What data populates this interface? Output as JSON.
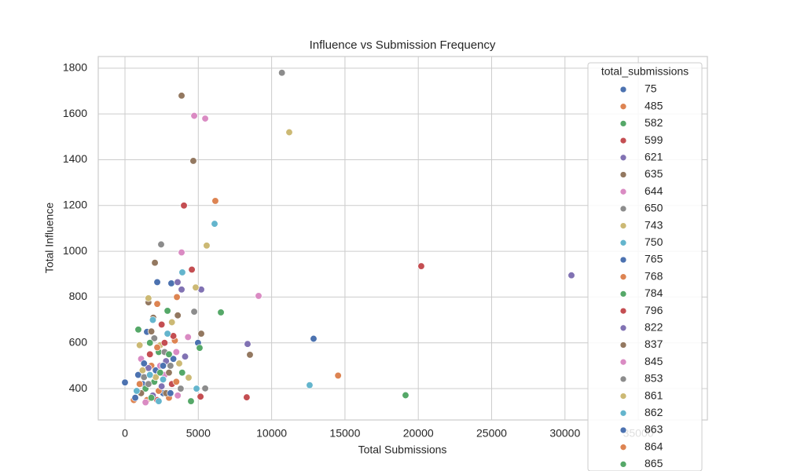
{
  "chart_data": {
    "type": "scatter",
    "title": "Influence vs Submission Frequency",
    "x_label": "Total Submissions",
    "y_label": "Total Influence",
    "legend_title": "total_submissions",
    "legend_position": "upper right",
    "grid": true,
    "xlim": [
      -1822,
      39711
    ],
    "ylim": [
      263,
      1851
    ],
    "xticks": [
      0,
      5000,
      10000,
      15000,
      20000,
      25000,
      30000,
      35000
    ],
    "yticks": [
      400,
      600,
      800,
      1000,
      1200,
      1400,
      1600,
      1800
    ],
    "series": [
      {
        "name": "75",
        "color": "#4c72b0",
        "x": [
          0,
          2200,
          3160,
          1500,
          12860,
          4980,
          1200,
          2600,
          900
        ],
        "values": [
          427,
          865,
          860,
          648,
          618,
          600,
          420,
          380,
          460
        ]
      },
      {
        "name": "485",
        "color": "#dd8452",
        "x": [
          6160,
          3540,
          14530,
          2200,
          1800,
          3000,
          600
        ],
        "values": [
          1220,
          800,
          457,
          770,
          500,
          360,
          350
        ]
      },
      {
        "name": "582",
        "color": "#55a868",
        "x": [
          6540,
          910,
          5090,
          19130,
          4500,
          2900,
          1400,
          2300
        ],
        "values": [
          733,
          658,
          578,
          371,
          345,
          740,
          400,
          560
        ]
      },
      {
        "name": "599",
        "color": "#c44e52",
        "x": [
          4020,
          20200,
          4560,
          8300,
          5150,
          2500,
          1700,
          3200
        ],
        "values": [
          1200,
          935,
          920,
          362,
          365,
          680,
          550,
          420
        ]
      },
      {
        "name": "621",
        "color": "#8172b3",
        "x": [
          30440,
          3590,
          5200,
          3860,
          8360,
          1600,
          2800
        ],
        "values": [
          895,
          865,
          833,
          833,
          595,
          490,
          520
        ]
      },
      {
        "name": "635",
        "color": "#937860",
        "x": [
          3860,
          4660,
          2040,
          1600,
          1930,
          5200,
          8520,
          3600,
          1100
        ],
        "values": [
          1680,
          1395,
          950,
          777,
          710,
          640,
          548,
          720,
          380
        ]
      },
      {
        "name": "644",
        "color": "#da8bc3",
        "x": [
          4720,
          5470,
          3860,
          9110,
          1100,
          2700,
          3500,
          4300
        ],
        "values": [
          1592,
          1580,
          995,
          805,
          530,
          460,
          560,
          625
        ]
      },
      {
        "name": "650",
        "color": "#8c8c8c",
        "x": [
          10700,
          2465,
          4720,
          5470,
          2000,
          3100,
          1300
        ],
        "values": [
          1780,
          1030,
          736,
          401,
          620,
          500,
          450
        ]
      },
      {
        "name": "743",
        "color": "#ccb974",
        "x": [
          11200,
          5570,
          4820,
          1600,
          4340,
          2400,
          3700,
          1000
        ],
        "values": [
          1520,
          1025,
          842,
          795,
          448,
          590,
          510,
          590
        ]
      },
      {
        "name": "750",
        "color": "#64b5cd",
        "x": [
          6110,
          3910,
          12590,
          4880,
          1900,
          800,
          2600
        ],
        "values": [
          1120,
          908,
          415,
          400,
          700,
          390,
          440
        ]
      },
      {
        "name": "765",
        "color": "#4c72b0",
        "x": [
          2100,
          3300,
          700
        ],
        "values": [
          480,
          530,
          360
        ]
      },
      {
        "name": "768",
        "color": "#dd8452",
        "x": [
          2300,
          3400,
          1500
        ],
        "values": [
          390,
          610,
          350
        ]
      },
      {
        "name": "784",
        "color": "#55a868",
        "x": [
          2000,
          3900,
          1700
        ],
        "values": [
          430,
          470,
          600
        ]
      },
      {
        "name": "796",
        "color": "#c44e52",
        "x": [
          2700,
          2200,
          3300
        ],
        "values": [
          600,
          350,
          630
        ]
      },
      {
        "name": "822",
        "color": "#8172b3",
        "x": [
          2500,
          1900,
          4100
        ],
        "values": [
          410,
          370,
          540
        ]
      },
      {
        "name": "837",
        "color": "#937860",
        "x": [
          2800,
          1800,
          3000
        ],
        "values": [
          380,
          650,
          470
        ]
      },
      {
        "name": "845",
        "color": "#da8bc3",
        "x": [
          1400,
          2400,
          3600
        ],
        "values": [
          340,
          500,
          370
        ]
      },
      {
        "name": "853",
        "color": "#8c8c8c",
        "x": [
          2700,
          1600,
          3800
        ],
        "values": [
          560,
          420,
          400
        ]
      },
      {
        "name": "861",
        "color": "#ccb974",
        "x": [
          2100,
          3200,
          1200
        ],
        "values": [
          450,
          690,
          480
        ]
      },
      {
        "name": "862",
        "color": "#64b5cd",
        "x": [
          1700,
          2900,
          2300
        ],
        "values": [
          460,
          640,
          345
        ]
      },
      {
        "name": "863",
        "color": "#4c72b0",
        "x": [
          2600,
          1300,
          3100
        ],
        "values": [
          500,
          510,
          380
        ]
      },
      {
        "name": "864",
        "color": "#dd8452",
        "x": [
          2200,
          3500,
          1000
        ],
        "values": [
          580,
          430,
          420
        ]
      },
      {
        "name": "865",
        "color": "#55a868",
        "x": [
          2400,
          3000,
          1800
        ],
        "values": [
          470,
          550,
          360
        ]
      }
    ]
  }
}
